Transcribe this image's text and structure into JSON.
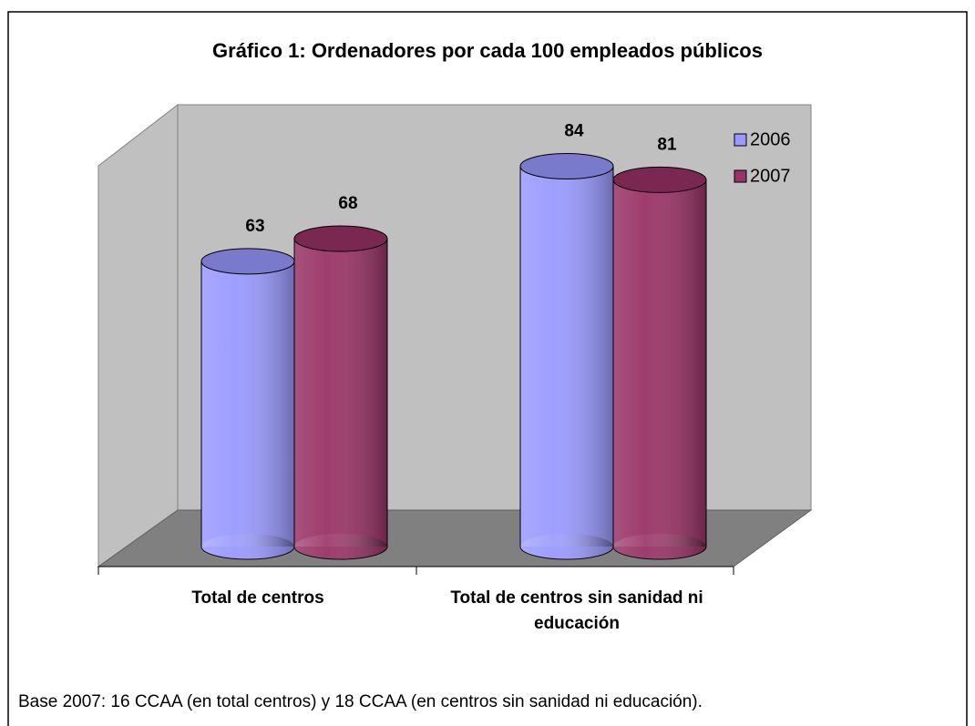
{
  "chart_data": {
    "type": "bar3d",
    "title": "Gráfico 1: Ordenadores por cada 100 empleados públicos",
    "categories": [
      "Total de centros",
      "Total de centros sin sanidad ni educación"
    ],
    "series": [
      {
        "name": "2006",
        "color": "#9999ff",
        "values": [
          63,
          84
        ]
      },
      {
        "name": "2007",
        "color": "#993366",
        "values": [
          68,
          81
        ]
      }
    ],
    "ylim": [
      0,
      100
    ],
    "legend": "top-right",
    "footnote": "Base 2007: 16 CCAA (en total centros) y 18 CCAA (en centros sin sanidad ni educación)."
  }
}
